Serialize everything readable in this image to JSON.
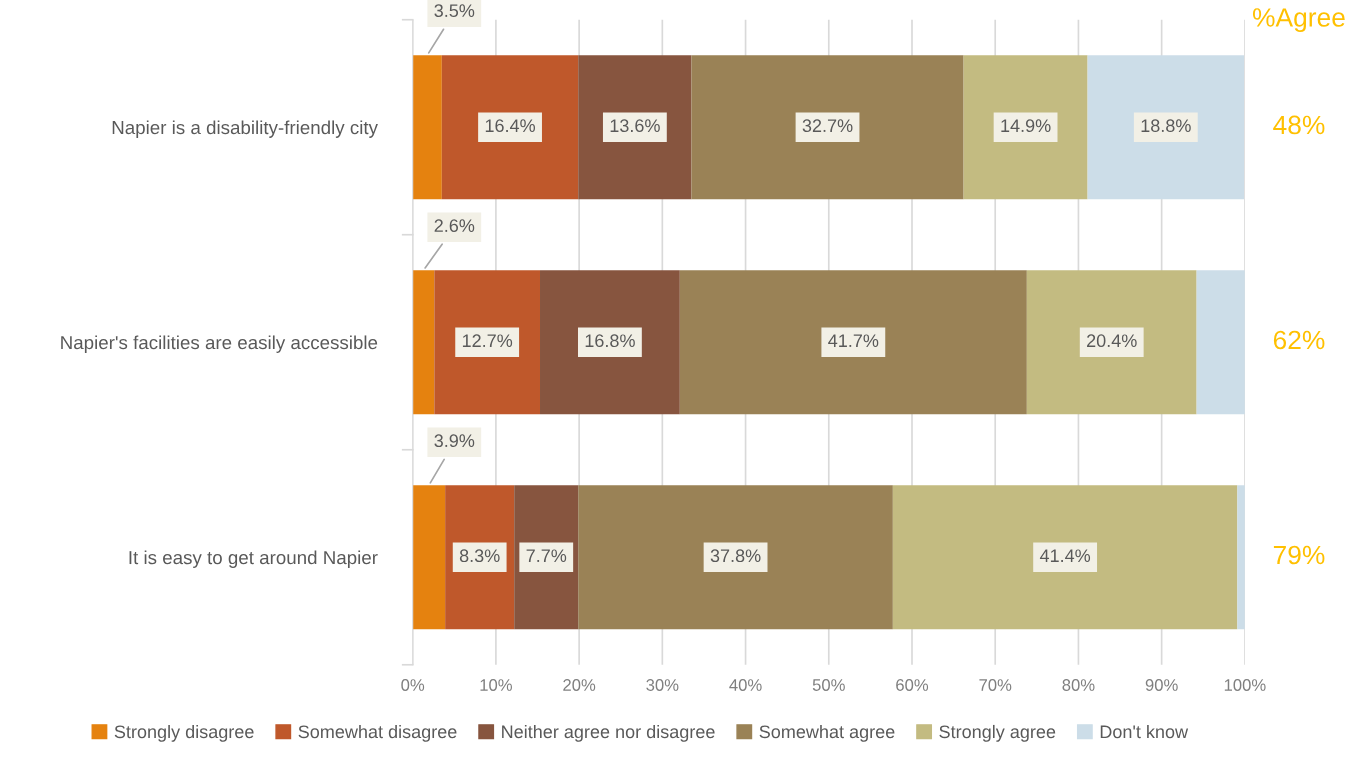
{
  "chart_data": {
    "type": "bar",
    "orientation": "horizontal",
    "stacked": true,
    "categories": [
      "Napier is a disability-friendly city",
      "Napier's facilities are easily accessible",
      "It is easy to get around Napier"
    ],
    "series": [
      {
        "name": "Strongly disagree",
        "color": "#e5820f",
        "values": [
          3.5,
          2.6,
          3.9
        ],
        "value_labels": [
          "3.5%",
          "2.6%",
          "3.9%"
        ]
      },
      {
        "name": "Somewhat disagree",
        "color": "#bf582b",
        "values": [
          16.4,
          12.7,
          8.3
        ],
        "value_labels": [
          "16.4%",
          "12.7%",
          "8.3%"
        ]
      },
      {
        "name": "Neither agree nor disagree",
        "color": "#87553f",
        "values": [
          13.6,
          16.8,
          7.7
        ],
        "value_labels": [
          "13.6%",
          "16.8%",
          "7.7%"
        ]
      },
      {
        "name": "Somewhat agree",
        "color": "#9a8256",
        "values": [
          32.7,
          41.7,
          37.8
        ],
        "value_labels": [
          "32.7%",
          "41.7%",
          "37.8%"
        ]
      },
      {
        "name": "Strongly agree",
        "color": "#c3bb81",
        "values": [
          14.9,
          20.4,
          41.4
        ],
        "value_labels": [
          "14.9%",
          "20.4%",
          "41.4%"
        ]
      },
      {
        "name": "Don't know",
        "color": "#ccdde8",
        "values": [
          18.8,
          5.8,
          0.9
        ],
        "value_labels": [
          "18.8%",
          null,
          null
        ]
      }
    ],
    "xlim": [
      0,
      100
    ],
    "xticks": [
      {
        "value": 0,
        "label": "0%"
      },
      {
        "value": 10,
        "label": "10%"
      },
      {
        "value": 20,
        "label": "20%"
      },
      {
        "value": 30,
        "label": "30%"
      },
      {
        "value": 40,
        "label": "40%"
      },
      {
        "value": 50,
        "label": "50%"
      },
      {
        "value": 60,
        "label": "60%"
      },
      {
        "value": 70,
        "label": "70%"
      },
      {
        "value": 80,
        "label": "80%"
      },
      {
        "value": 90,
        "label": "90%"
      },
      {
        "value": 100,
        "label": "100%"
      }
    ],
    "grid": "x",
    "legend": "bottom",
    "annotations": [
      "%Agree",
      "48%",
      "62%",
      "79%"
    ]
  }
}
